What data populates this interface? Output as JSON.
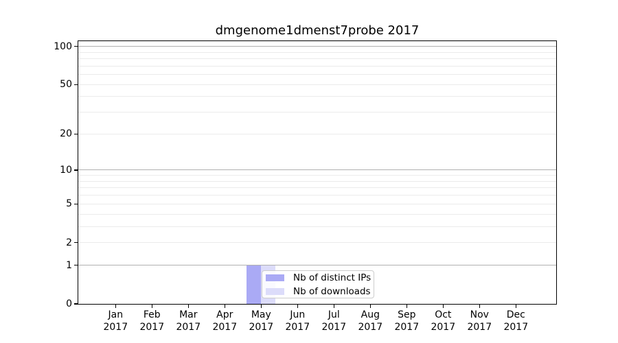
{
  "chart_data": {
    "type": "bar",
    "title": "dmgenome1dmenst7probe 2017",
    "categories": [
      "Jan 2017",
      "Feb 2017",
      "Mar 2017",
      "Apr 2017",
      "May 2017",
      "Jun 2017",
      "Jul 2017",
      "Aug 2017",
      "Sep 2017",
      "Oct 2017",
      "Nov 2017",
      "Dec 2017"
    ],
    "x_tick_months": [
      "Jan",
      "Feb",
      "Mar",
      "Apr",
      "May",
      "Jun",
      "Jul",
      "Aug",
      "Sep",
      "Oct",
      "Nov",
      "Dec"
    ],
    "x_tick_year": "2017",
    "series": [
      {
        "name": "Nb of distinct IPs",
        "color": "#aaaaf5",
        "values": [
          0,
          0,
          0,
          0,
          1,
          0,
          0,
          0,
          0,
          0,
          0,
          0
        ]
      },
      {
        "name": "Nb of downloads",
        "color": "#dcdcfa",
        "values": [
          0,
          0,
          0,
          0,
          1,
          0,
          0,
          0,
          0,
          0,
          0,
          0
        ]
      }
    ],
    "yscale": "log1p",
    "ylim": [
      0,
      110
    ],
    "y_ticks": [
      {
        "label": "0",
        "value": 0
      },
      {
        "label": "1",
        "value": 1
      },
      {
        "label": "2",
        "value": 2
      },
      {
        "label": "5",
        "value": 5
      },
      {
        "label": "10",
        "value": 10
      },
      {
        "label": "20",
        "value": 20
      },
      {
        "label": "50",
        "value": 50
      },
      {
        "label": "100",
        "value": 100
      }
    ],
    "y_major_gridlines": [
      1,
      10,
      100
    ],
    "y_minor_gridlines": [
      2,
      3,
      4,
      5,
      6,
      7,
      8,
      9,
      20,
      30,
      40,
      50,
      60,
      70,
      80,
      90
    ],
    "legend_position": "inside-bottom-center",
    "grid": true,
    "colors": {
      "major_grid": "#b0b0b0",
      "minor_grid": "#ebebeb",
      "axis": "#000000",
      "background": "#ffffff"
    }
  }
}
